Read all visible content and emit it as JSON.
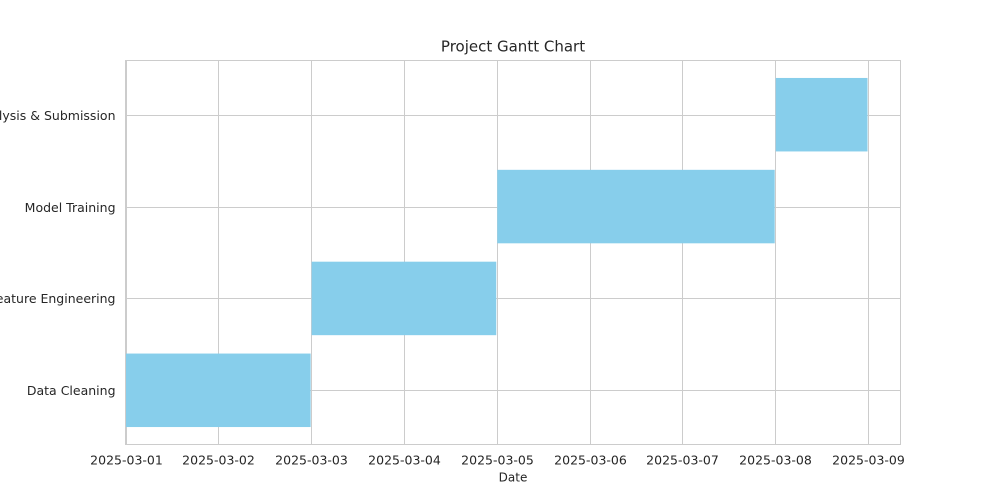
{
  "chart_data": {
    "type": "gantt",
    "title": "Project Gantt Chart",
    "xlabel": "Date",
    "ylabel": "",
    "x_ticks": [
      "2025-03-01",
      "2025-03-02",
      "2025-03-03",
      "2025-03-04",
      "2025-03-05",
      "2025-03-06",
      "2025-03-07",
      "2025-03-08",
      "2025-03-09"
    ],
    "xlim": [
      "2025-03-01",
      "2025-03-09 08:24"
    ],
    "grid": true,
    "bar_color": "#87ceeb",
    "grid_color": "#cccccc",
    "tasks": [
      {
        "label": "Data Cleaning",
        "start": "2025-03-01",
        "end": "2025-03-03"
      },
      {
        "label": "Feature Engineering",
        "start": "2025-03-03",
        "end": "2025-03-05"
      },
      {
        "label": "Model Training",
        "start": "2025-03-05",
        "end": "2025-03-08"
      },
      {
        "label": "Analysis & Submission",
        "start": "2025-03-08",
        "end": "2025-03-09"
      }
    ]
  }
}
